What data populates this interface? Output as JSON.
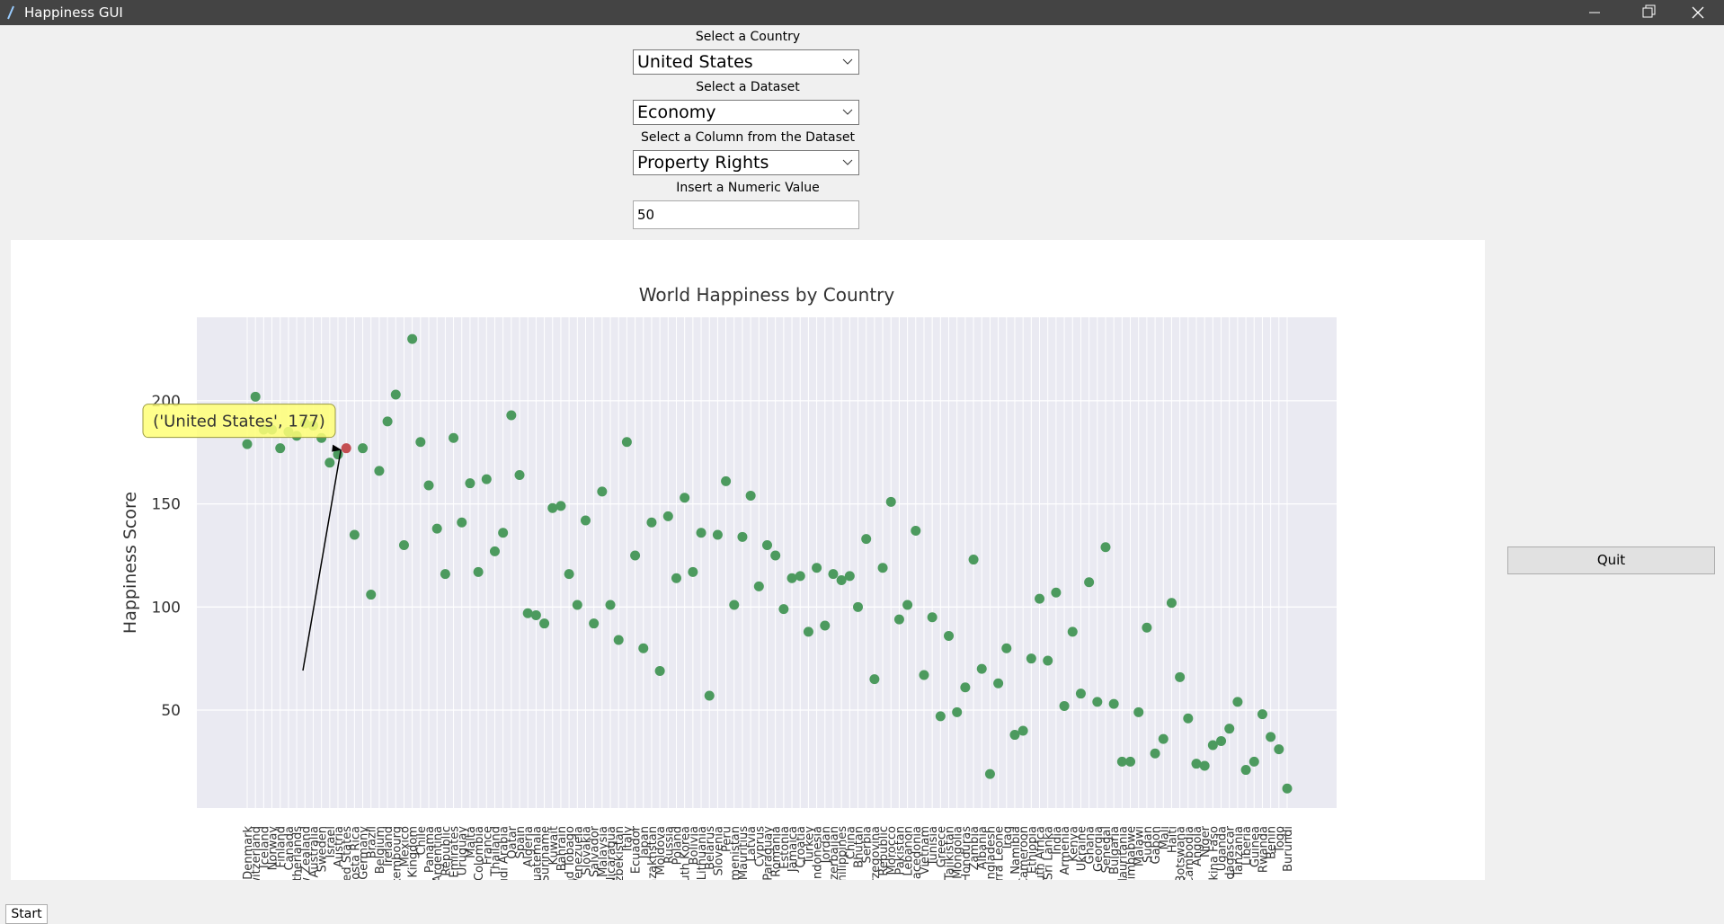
{
  "window": {
    "title": "Happiness GUI"
  },
  "form": {
    "country_label": "Select a Country",
    "country": "United States",
    "dataset_label": "Select a Dataset",
    "dataset": "Economy",
    "column_label": "Select a Column from the Dataset",
    "column": "Property Rights",
    "value_label": "Insert a Numeric Value",
    "value": "50"
  },
  "quit_button": "Quit",
  "taskbar": {
    "start": "Start"
  },
  "chart_data": {
    "type": "scatter",
    "title": "World Happiness by Country",
    "y_label": "Happiness Score",
    "categories": [
      "Denmark",
      "Switzerland",
      "Iceland",
      "Norway",
      "Finland",
      "Canada",
      "Netherlands",
      "New Zealand",
      "Australia",
      "Sweden",
      "Israel",
      "Austria",
      "United States",
      "Costa Rica",
      "Germany",
      "Brazil",
      "Belgium",
      "Ireland",
      "Luxembourg",
      "Mexico",
      "United Kingdom",
      "Chile",
      "Panama",
      "Argentina",
      "Czech Republic",
      "United Arab Emirates",
      "Uruguay",
      "Malta",
      "Colombia",
      "France",
      "Thailand",
      "Saudi Arabia",
      "Qatar",
      "Spain",
      "Algeria",
      "Guatemala",
      "Suriname",
      "Kuwait",
      "Bahrain",
      "Trinidad and Tobago",
      "Venezuela",
      "Slovakia",
      "El Salvador",
      "Malaysia",
      "Nicaragua",
      "Uzbekistan",
      "Italy",
      "Ecuador",
      "Japan",
      "Kazakhstan",
      "Moldova",
      "Russia",
      "Poland",
      "South Korea",
      "Bolivia",
      "Lithuania",
      "Belarus",
      "Slovenia",
      "Peru",
      "Turkmenistan",
      "Mauritius",
      "Latvia",
      "Cyprus",
      "Paraguay",
      "Romania",
      "Estonia",
      "Jamaica",
      "Croatia",
      "Turkey",
      "Indonesia",
      "Jordan",
      "Azerbaijan",
      "Philippines",
      "China",
      "Bhutan",
      "Serbia",
      "Bosnia and Herzegovina",
      "Dominican Republic",
      "Morocco",
      "Pakistan",
      "Lebanon",
      "Macedonia",
      "Vietnam",
      "Tunisia",
      "Greece",
      "Tajikistan",
      "Mongolia",
      "Honduras",
      "Zambia",
      "Albania",
      "Bangladesh",
      "Sierra Leone",
      "Iraq",
      "Namibia",
      "Cameroon",
      "Ethiopia",
      "South Africa",
      "Sri Lanka",
      "India",
      "Armenia",
      "Kenya",
      "Ukraine",
      "Ghana",
      "Georgia",
      "Senegal",
      "Bulgaria",
      "Mauritania",
      "Zimbabwe",
      "Malawi",
      "Sudan",
      "Gabon",
      "Mali",
      "Haiti",
      "Botswana",
      "Cambodia",
      "Angola",
      "Niger",
      "Burkina Faso",
      "Uganda",
      "Madagascar",
      "Tanzania",
      "Liberia",
      "Guinea",
      "Rwanda",
      "Benin",
      "Togo",
      "Burundi"
    ],
    "values": [
      179,
      202,
      186,
      186,
      177,
      185,
      183,
      189,
      188,
      182,
      170,
      174,
      177,
      135,
      177,
      106,
      166,
      190,
      203,
      130,
      230,
      180,
      159,
      138,
      116,
      182,
      141,
      160,
      117,
      162,
      127,
      136,
      193,
      164,
      97,
      96,
      92,
      148,
      149,
      116,
      101,
      142,
      92,
      156,
      101,
      84,
      180,
      125,
      80,
      141,
      69,
      144,
      114,
      153,
      117,
      136,
      57,
      135,
      161,
      101,
      134,
      154,
      110,
      130,
      125,
      99,
      114,
      115,
      88,
      119,
      91,
      116,
      113,
      115,
      100,
      133,
      65,
      119,
      151,
      94,
      101,
      137,
      67,
      95,
      47,
      86,
      49,
      61,
      123,
      70,
      19,
      63,
      80,
      38,
      40,
      75,
      104,
      74,
      107,
      52,
      88,
      58,
      112,
      54,
      129,
      53,
      25,
      25,
      49,
      90,
      29,
      36,
      102,
      66,
      46,
      24,
      23,
      33,
      35,
      41,
      54,
      21,
      25,
      48,
      37,
      31,
      12
    ],
    "color": "#4c9a5e",
    "highlight_color": "#c44e52",
    "annotation": {
      "text": "('United States', 177)",
      "point": 12
    },
    "ylim": [
      2.5,
      240.5
    ],
    "yticks": [
      50,
      100,
      150,
      200
    ],
    "grid": true
  }
}
